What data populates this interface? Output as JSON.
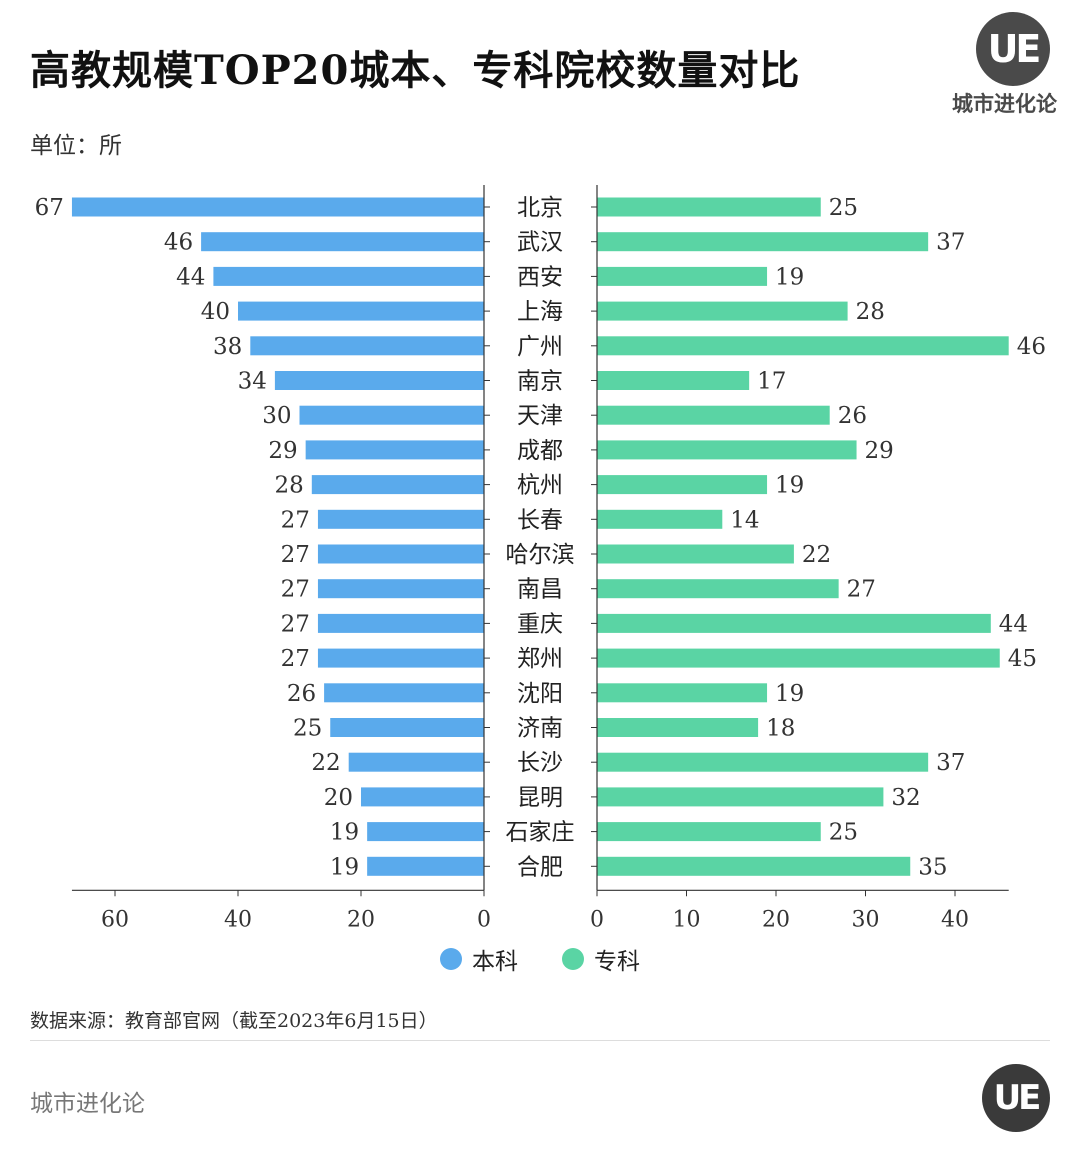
{
  "title": "高教规模TOP20城本、专科院校数量对比",
  "unit_label": "单位：所",
  "brand": {
    "logo_letters": "UE",
    "name": "城市进化论"
  },
  "legend": [
    {
      "label": "本科",
      "color": "#5aaaec"
    },
    {
      "label": "专科",
      "color": "#5ad4a4"
    }
  ],
  "source": "数据来源：教育部官网（截至2023年6月15日）",
  "footer": "城市进化论",
  "chart_data": {
    "type": "bar",
    "orientation": "horizontal-butterfly",
    "categories": [
      "北京",
      "武汉",
      "西安",
      "上海",
      "广州",
      "南京",
      "天津",
      "成都",
      "杭州",
      "长春",
      "哈尔滨",
      "南昌",
      "重庆",
      "郑州",
      "沈阳",
      "济南",
      "长沙",
      "昆明",
      "石家庄",
      "合肥"
    ],
    "series": [
      {
        "name": "本科",
        "color": "#5aaaec",
        "values": [
          67,
          46,
          44,
          40,
          38,
          34,
          30,
          29,
          28,
          27,
          27,
          27,
          27,
          27,
          26,
          25,
          22,
          20,
          19,
          19
        ]
      },
      {
        "name": "专科",
        "color": "#5ad4a4",
        "values": [
          25,
          37,
          19,
          28,
          46,
          17,
          26,
          29,
          19,
          14,
          22,
          27,
          44,
          45,
          19,
          18,
          37,
          32,
          25,
          35
        ]
      }
    ],
    "left_axis": {
      "ticks": [
        60,
        40,
        20,
        0
      ],
      "xlim": [
        0,
        67
      ]
    },
    "right_axis": {
      "ticks": [
        0,
        10,
        20,
        30,
        40
      ],
      "xlim": [
        0,
        46
      ]
    }
  }
}
